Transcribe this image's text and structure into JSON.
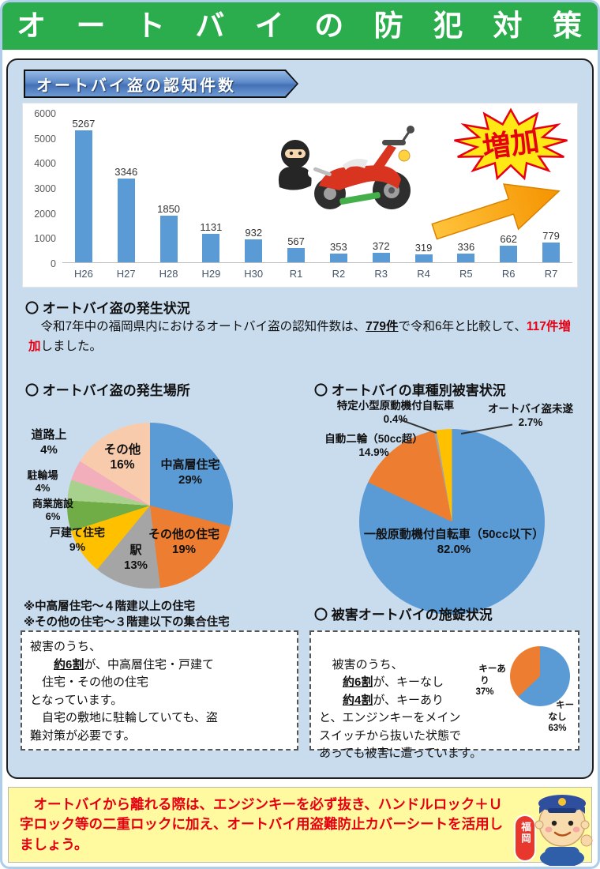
{
  "colors": {
    "header_green": "#2BAD4E",
    "panel_blue": "#C9DCEE",
    "accent_red": "#E60012",
    "bar_blue": "#5B9BD5",
    "advice_yellow": "#FFF9A0",
    "burst_yellow": "#FFE814",
    "arrow_orange": "#F5A723"
  },
  "header": {
    "title": "オートバイの防犯対策"
  },
  "panel": {
    "badge": "オートバイ盗の認知件数",
    "burst_label": "増加"
  },
  "chart_data": [
    {
      "type": "bar",
      "title": "オートバイ盗の認知件数",
      "categories": [
        "H26",
        "H27",
        "H28",
        "H29",
        "H30",
        "R1",
        "R2",
        "R3",
        "R4",
        "R5",
        "R6",
        "R7"
      ],
      "values": [
        5267,
        3346,
        1850,
        1131,
        932,
        567,
        353,
        372,
        319,
        336,
        662,
        779
      ],
      "xlabel": "",
      "ylabel": "",
      "ylim": [
        0,
        6000
      ],
      "yticks": [
        0,
        1000,
        2000,
        3000,
        4000,
        5000,
        6000
      ],
      "bar_color": "#5B9BD5",
      "grid": false,
      "legend": false
    },
    {
      "type": "pie",
      "title": "オートバイ盗の発生場所",
      "slices": [
        {
          "label": "中高層住宅",
          "pct": 29,
          "pct_label": "29%",
          "color": "#5B9BD5"
        },
        {
          "label": "その他の住宅",
          "pct": 19,
          "pct_label": "19%",
          "color": "#ED7D31"
        },
        {
          "label": "駅",
          "pct": 13,
          "pct_label": "13%",
          "color": "#A5A5A5"
        },
        {
          "label": "戸建て住宅",
          "pct": 9,
          "pct_label": "9%",
          "color": "#FFC000"
        },
        {
          "label": "商業施設",
          "pct": 6,
          "pct_label": "6%",
          "color": "#70AD47"
        },
        {
          "label": "駐輪場",
          "pct": 4,
          "pct_label": "4%",
          "color": "#A9D18E"
        },
        {
          "label": "道路上",
          "pct": 4,
          "pct_label": "4%",
          "color": "#F2AEBB"
        },
        {
          "label": "その他",
          "pct": 16,
          "pct_label": "16%",
          "color": "#F8CBAD"
        }
      ]
    },
    {
      "type": "pie",
      "title": "オートバイの車種別被害状況",
      "slices": [
        {
          "label": "一般原動機付自転車（50cc以下）",
          "pct": 82.0,
          "pct_label": "82.0%",
          "color": "#5B9BD5"
        },
        {
          "label": "自動二輪（50cc超）",
          "pct": 14.9,
          "pct_label": "14.9%",
          "color": "#ED7D31"
        },
        {
          "label": "特定小型原動機付自転車",
          "pct": 0.4,
          "pct_label": "0.4%",
          "color": "#A5A5A5"
        },
        {
          "label": "オートバイ盗未遂",
          "pct": 2.7,
          "pct_label": "2.7%",
          "color": "#FFC000"
        }
      ]
    },
    {
      "type": "pie",
      "title": "被害オートバイの施錠状況",
      "slices": [
        {
          "label": "キーなし",
          "pct": 63,
          "pct_label": "63%",
          "color": "#5B9BD5"
        },
        {
          "label": "キーあり",
          "pct": 37,
          "pct_label": "37%",
          "color": "#ED7D31"
        }
      ]
    }
  ],
  "occurrence": {
    "heading": "〇 オートバイ盗の発生状況",
    "paragraph": [
      {
        "text": "　令和7年中の福岡県内におけるオートバイ盗の認知件数は、"
      },
      {
        "text": "779件",
        "bold": true,
        "underline": true
      },
      {
        "text": "で令和6年と比較して、"
      },
      {
        "text": "117件増加",
        "bold": true,
        "red": true
      },
      {
        "text": "しました。"
      }
    ]
  },
  "place_section": {
    "heading": "〇 オートバイ盗の発生場所",
    "notes": [
      "※中高層住宅～４階建以上の住宅",
      "※その他の住宅～３階建以下の集合住宅"
    ],
    "box": [
      {
        "text": "被害のうち、\n　　"
      },
      {
        "text": "約6割",
        "bold": true,
        "underline": true
      },
      {
        "text": "が、中高層住宅・戸建て\n　住宅・その他の住宅\nとなっています。\n　自宅の敷地に駐輪していても、盗\n難対策が必要です。"
      }
    ]
  },
  "type_section": {
    "heading": "〇 オートバイの車種別被害状況"
  },
  "lock_section": {
    "heading": "〇 被害オートバイの施錠状況",
    "box": [
      {
        "text": "被害のうち、\n　　"
      },
      {
        "text": "約6割",
        "bold": true,
        "underline": true
      },
      {
        "text": "が、キーなし\n　　"
      },
      {
        "text": "約4割",
        "bold": true,
        "underline": true
      },
      {
        "text": "が、キーあり\nと、エンジンキーをメイン\nスイッチから抜いた状態で\nあっても被害に遭っています。"
      }
    ]
  },
  "advice": {
    "segments": [
      {
        "text": "　オートバイから離れる際は、エンジンキーを必ず抜き、ハンドルロック＋Ｕ字ロック等の二重ロックに加え、オートバイ用盗難防止カバーシートを活用しましょう。",
        "bold": true,
        "red": true
      }
    ]
  },
  "mascot": {
    "badge": "福岡"
  }
}
